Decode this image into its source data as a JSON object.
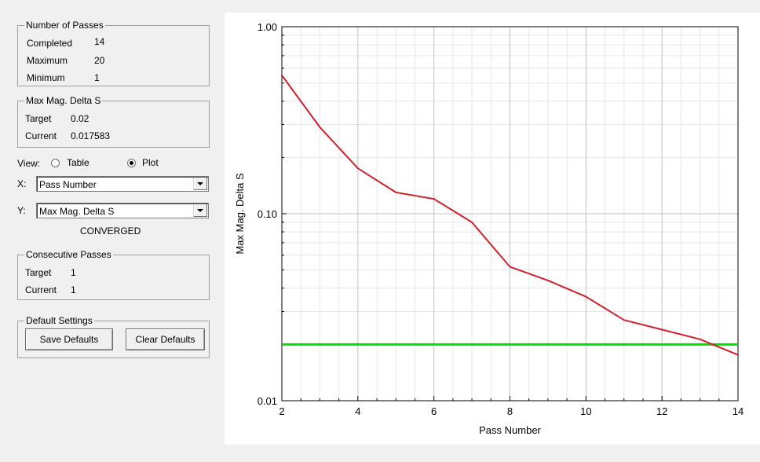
{
  "passes": {
    "title": "Number of Passes",
    "completed_label": "Completed",
    "completed_value": "14",
    "maximum_label": "Maximum",
    "maximum_value": "20",
    "minimum_label": "Minimum",
    "minimum_value": "1"
  },
  "delta": {
    "title": "Max Mag. Delta S",
    "target_label": "Target",
    "target_value": "0.02",
    "current_label": "Current",
    "current_value": "0.017583"
  },
  "view": {
    "label": "View:",
    "table_label": "Table",
    "plot_label": "Plot",
    "selected": "Plot"
  },
  "x_axis_select": {
    "label": "X:",
    "value": "Pass Number"
  },
  "y_axis_select": {
    "label": "Y:",
    "value": "Max Mag. Delta S"
  },
  "status": "CONVERGED",
  "consecutive": {
    "title": "Consecutive Passes",
    "target_label": "Target",
    "target_value": "1",
    "current_label": "Current",
    "current_value": "1"
  },
  "defaults": {
    "title": "Default Settings",
    "save_label": "Save Defaults",
    "clear_label": "Clear Defaults"
  },
  "chart_data": {
    "type": "line",
    "xlabel": "Pass Number",
    "ylabel": "Max Mag. Delta S",
    "xlim": [
      2,
      14
    ],
    "ylim": [
      0.01,
      1.0
    ],
    "yscale": "log",
    "grid": true,
    "x_ticks": [
      "2",
      "4",
      "6",
      "8",
      "10",
      "12",
      "14"
    ],
    "y_ticks": [
      "0.01",
      "0.10",
      "1.00"
    ],
    "series": [
      {
        "color": "#d0202a",
        "x": [
          2,
          3,
          4,
          5,
          6,
          7,
          8,
          9,
          10,
          11,
          12,
          13,
          14
        ],
        "y": [
          0.55,
          0.29,
          0.175,
          0.13,
          0.12,
          0.09,
          0.052,
          0.044,
          0.036,
          0.027,
          0.024,
          0.0213,
          0.017583
        ]
      }
    ],
    "reference_line": {
      "y": 0.02,
      "color": "#00e000"
    }
  }
}
